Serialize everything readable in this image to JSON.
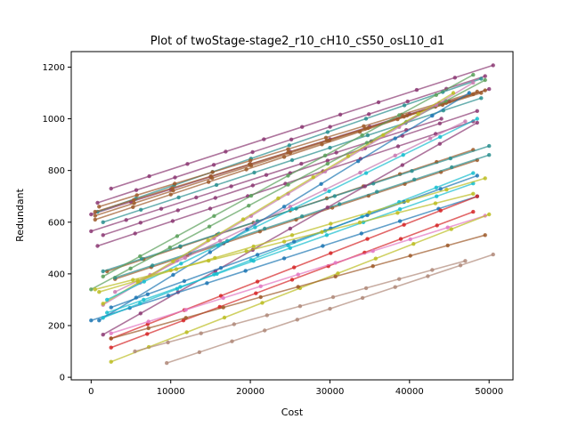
{
  "chart_data": {
    "type": "line",
    "title": "Plot of twoStage-stage2_r10_cH10_cS50_osL10_d1",
    "xlabel": "Cost",
    "ylabel": "Redundant",
    "xlim": [
      -2500,
      53000
    ],
    "ylim": [
      -10,
      1260
    ],
    "xticks": [
      0,
      10000,
      20000,
      30000,
      40000,
      50000
    ],
    "yticks": [
      0,
      200,
      400,
      600,
      800,
      1000,
      1200
    ],
    "grid": false,
    "legend": "none",
    "markers": true,
    "series": [
      {
        "color": "#8c3a74",
        "x": [
          2500,
          50500
        ],
        "y": [
          730,
          1207
        ]
      },
      {
        "color": "#8c3a74",
        "x": [
          800,
          49500
        ],
        "y": [
          675,
          1165
        ]
      },
      {
        "color": "#8c3a74",
        "x": [
          0,
          50000
        ],
        "y": [
          630,
          1115
        ]
      },
      {
        "color": "#8c3a74",
        "x": [
          1500,
          48500
        ],
        "y": [
          550,
          1030
        ]
      },
      {
        "color": "#8c3a74",
        "x": [
          800,
          48000
        ],
        "y": [
          508,
          990
        ]
      },
      {
        "color": "#8c3a74",
        "x": [
          0,
          44000
        ],
        "y": [
          565,
          1000
        ]
      },
      {
        "color": "#2a8f8f",
        "x": [
          800,
          49000
        ],
        "y": [
          640,
          1155
        ]
      },
      {
        "color": "#2a8f8f",
        "x": [
          1500,
          49000
        ],
        "y": [
          600,
          1080
        ]
      },
      {
        "color": "#9e5a2a",
        "x": [
          500,
          49500
        ],
        "y": [
          625,
          1110
        ]
      },
      {
        "color": "#9e5a2a",
        "x": [
          500,
          48000
        ],
        "y": [
          610,
          1095
        ]
      },
      {
        "color": "#9e5a2a",
        "x": [
          500,
          49000
        ],
        "y": [
          640,
          1100
        ]
      },
      {
        "color": "#9e5a2a",
        "x": [
          1000,
          48500
        ],
        "y": [
          660,
          1105
        ]
      },
      {
        "color": "#9e5a2a",
        "x": [
          2000,
          48000
        ],
        "y": [
          410,
          880
        ]
      },
      {
        "color": "#9e5a2a",
        "x": [
          3000,
          48500
        ],
        "y": [
          380,
          840
        ]
      },
      {
        "color": "#2a8f8f",
        "x": [
          1500,
          50000
        ],
        "y": [
          410,
          895
        ]
      },
      {
        "color": "#2a8f8f",
        "x": [
          3000,
          50000
        ],
        "y": [
          385,
          860
        ]
      },
      {
        "color": "#5aa05a",
        "x": [
          1500,
          48000
        ],
        "y": [
          390,
          1170
        ]
      },
      {
        "color": "#5aa05a",
        "x": [
          0,
          49500
        ],
        "y": [
          340,
          1150
        ]
      },
      {
        "color": "#c87ab0",
        "x": [
          1500,
          48000
        ],
        "y": [
          280,
          1140
        ]
      },
      {
        "color": "#c87ab0",
        "x": [
          3000,
          47000
        ],
        "y": [
          330,
          990
        ]
      },
      {
        "color": "#1f77b4",
        "x": [
          1000,
          47500
        ],
        "y": [
          220,
          1100
        ]
      },
      {
        "color": "#bcbd22",
        "x": [
          1500,
          45500
        ],
        "y": [
          285,
          1100
        ]
      },
      {
        "color": "#17becf",
        "x": [
          2000,
          48500
        ],
        "y": [
          300,
          1000
        ]
      },
      {
        "color": "#8c3a74",
        "x": [
          1500,
          48500
        ],
        "y": [
          165,
          985
        ]
      },
      {
        "color": "#1f77b4",
        "x": [
          0,
          48500
        ],
        "y": [
          220,
          700
        ]
      },
      {
        "color": "#17becf",
        "x": [
          2000,
          48000
        ],
        "y": [
          250,
          750
        ]
      },
      {
        "color": "#17becf",
        "x": [
          1500,
          48000
        ],
        "y": [
          230,
          790
        ]
      },
      {
        "color": "#1f77b4",
        "x": [
          2500,
          48500
        ],
        "y": [
          270,
          780
        ]
      },
      {
        "color": "#bcbd22",
        "x": [
          500,
          48000
        ],
        "y": [
          340,
          710
        ]
      },
      {
        "color": "#bcbd22",
        "x": [
          1000,
          49500
        ],
        "y": [
          330,
          770
        ]
      },
      {
        "color": "#d62728",
        "x": [
          2500,
          48500
        ],
        "y": [
          150,
          700
        ]
      },
      {
        "color": "#d62728",
        "x": [
          2500,
          48000
        ],
        "y": [
          115,
          640
        ]
      },
      {
        "color": "#e377c2",
        "x": [
          2500,
          49500
        ],
        "y": [
          170,
          625
        ]
      },
      {
        "color": "#bcbd22",
        "x": [
          2500,
          50000
        ],
        "y": [
          60,
          630
        ]
      },
      {
        "color": "#9e5a2a",
        "x": [
          2500,
          49500
        ],
        "y": [
          150,
          550
        ]
      },
      {
        "color": "#b08a7a",
        "x": [
          9500,
          50500
        ],
        "y": [
          55,
          475
        ]
      },
      {
        "color": "#b08a7a",
        "x": [
          5500,
          47000
        ],
        "y": [
          100,
          450
        ]
      }
    ]
  }
}
